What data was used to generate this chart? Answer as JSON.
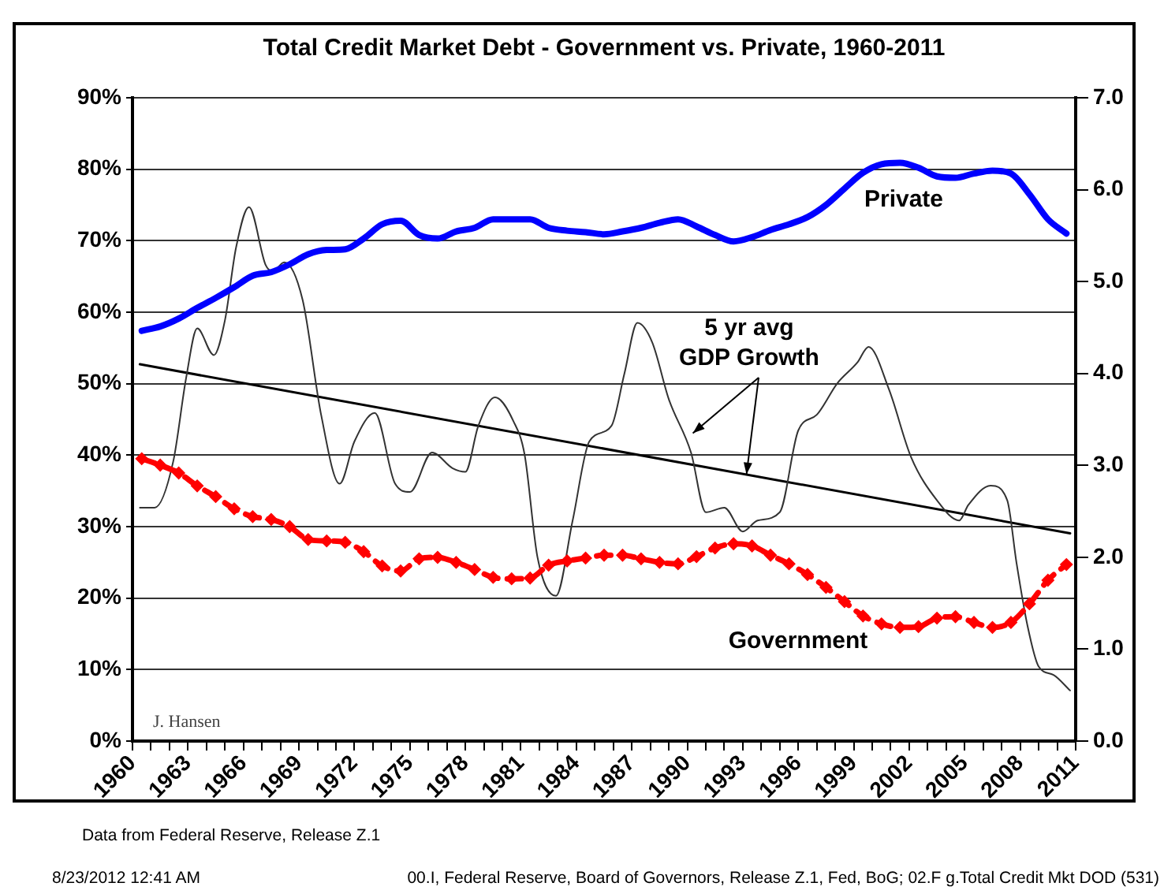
{
  "chart_data": {
    "type": "line",
    "title": "Total Credit Market Debt - Government vs. Private, 1960-2011",
    "x": [
      1960.5,
      1961.5,
      1962.5,
      1963.5,
      1964.5,
      1965.5,
      1966.5,
      1967.5,
      1968.5,
      1969.5,
      1970.5,
      1971.5,
      1972.5,
      1973.5,
      1974.5,
      1975.5,
      1976.5,
      1977.5,
      1978.5,
      1979.5,
      1980.5,
      1981.5,
      1982.5,
      1983.5,
      1984.5,
      1985.5,
      1986.5,
      1987.5,
      1988.5,
      1989.5,
      1990.5,
      1991.5,
      1992.5,
      1993.5,
      1994.5,
      1995.5,
      1996.5,
      1997.5,
      1998.5,
      1999.5,
      2000.5,
      2001.5,
      2002.5,
      2003.5,
      2004.5,
      2005.5,
      2006.5,
      2007.5,
      2008.5,
      2009.5,
      2010.5
    ],
    "series": [
      {
        "color": "#0000ff",
        "values": [
          57.4,
          58,
          59.1,
          60.6,
          62,
          63.5,
          65.1,
          65.6,
          66.7,
          68.1,
          68.7,
          68.8,
          70.3,
          72.3,
          72.8,
          70.8,
          70.3,
          71.3,
          71.8,
          73,
          73,
          73,
          71.8,
          71.4,
          71.2,
          70.9,
          71.3,
          71.8,
          72.5,
          73,
          72,
          70.8,
          69.9,
          70.5,
          71.5,
          72.3,
          73.3,
          75,
          77.3,
          79.5,
          80.7,
          80.9,
          80.2,
          79,
          78.8,
          79.4,
          79.8,
          79.4,
          76.5,
          73,
          71
        ]
      },
      {
        "color": "#ff0000",
        "marker": "diamond",
        "line_style": "dashed",
        "values": [
          39.5,
          38.6,
          37.5,
          35.7,
          34.2,
          32.5,
          31.4,
          31,
          30,
          28.2,
          28,
          27.8,
          26.5,
          24.5,
          23.8,
          25.5,
          25.7,
          25,
          24,
          22.9,
          22.7,
          22.8,
          24.6,
          25.2,
          25.6,
          26,
          26,
          25.5,
          25,
          24.8,
          25.8,
          27,
          27.6,
          27.3,
          26,
          24.8,
          23.3,
          21.5,
          19.5,
          17.5,
          16.4,
          15.9,
          16,
          17.2,
          17.4,
          16.6,
          15.9,
          16.6,
          19.2,
          22.5,
          24.7
        ]
      },
      {
        "color": "#333333",
        "axis": "y2",
        "x": [
          1960.4,
          1961.2,
          1962.2,
          1962.9,
          1963.5,
          1964.4,
          1965,
          1965.6,
          1966.3,
          1967.2,
          1967.6,
          1968.2,
          1969.2,
          1970.2,
          1971.2,
          1972,
          1973.1,
          1974.2,
          1975,
          1976.2,
          1977.3,
          1978,
          1978.7,
          1979.6,
          1980.6,
          1981.2,
          1981.9,
          1982.9,
          1983.8,
          1984.7,
          1985.9,
          1986.6,
          1987.3,
          1988.1,
          1989,
          1990.2,
          1991,
          1992,
          1993,
          1993.8,
          1995,
          1996,
          1997,
          1998.1,
          1999.2,
          1999.8,
          2000.9,
          2002.1,
          2003.5,
          2004.7,
          2005.2,
          2006.4,
          2007.3,
          2007.8,
          2008.4,
          2009,
          2009.8,
          2010.7
        ],
        "values": [
          2.54,
          2.54,
          3.04,
          3.95,
          4.49,
          4.2,
          4.58,
          5.37,
          5.81,
          5.18,
          5.11,
          5.21,
          4.8,
          3.55,
          2.8,
          3.26,
          3.57,
          2.8,
          2.71,
          3.14,
          2.97,
          2.93,
          3.43,
          3.74,
          3.48,
          3.12,
          2,
          1.58,
          2.4,
          3.26,
          3.43,
          4,
          4.55,
          4.34,
          3.72,
          3.14,
          2.49,
          2.54,
          2.28,
          2.4,
          2.49,
          3.38,
          3.55,
          3.89,
          4.12,
          4.29,
          3.83,
          3.09,
          2.62,
          2.4,
          2.57,
          2.78,
          2.62,
          1.94,
          1.25,
          0.81,
          0.72,
          0.55
        ]
      },
      {
        "color": "#000000",
        "axis": "y2",
        "x": [
          1960.4,
          2010.7
        ],
        "values": [
          4.1,
          2.26
        ]
      }
    ],
    "xlim": [
      1960,
      2011
    ],
    "xticks": [
      1960,
      {
        "value": 1961,
        "label": null
      },
      {
        "value": 1962,
        "label": null
      },
      1963,
      {
        "value": 1964,
        "label": null
      },
      {
        "value": 1965,
        "label": null
      },
      1966,
      {
        "value": 1967,
        "label": null
      },
      {
        "value": 1968,
        "label": null
      },
      1969,
      {
        "value": 1970,
        "label": null
      },
      {
        "value": 1971,
        "label": null
      },
      1972,
      {
        "value": 1973,
        "label": null
      },
      {
        "value": 1974,
        "label": null
      },
      1975,
      {
        "value": 1976,
        "label": null
      },
      {
        "value": 1977,
        "label": null
      },
      1978,
      {
        "value": 1979,
        "label": null
      },
      {
        "value": 1980,
        "label": null
      },
      1981,
      {
        "value": 1982,
        "label": null
      },
      {
        "value": 1983,
        "label": null
      },
      1984,
      {
        "value": 1985,
        "label": null
      },
      {
        "value": 1986,
        "label": null
      },
      1987,
      {
        "value": 1988,
        "label": null
      },
      {
        "value": 1989,
        "label": null
      },
      1990,
      {
        "value": 1991,
        "label": null
      },
      {
        "value": 1992,
        "label": null
      },
      1993,
      {
        "value": 1994,
        "label": null
      },
      {
        "value": 1995,
        "label": null
      },
      1996,
      {
        "value": 1997,
        "label": null
      },
      {
        "value": 1998,
        "label": null
      },
      1999,
      {
        "value": 2000,
        "label": null
      },
      {
        "value": 2001,
        "label": null
      },
      2002,
      {
        "value": 2003,
        "label": null
      },
      {
        "value": 2004,
        "label": null
      },
      2005,
      {
        "value": 2006,
        "label": null
      },
      {
        "value": 2007,
        "label": null
      },
      2008,
      {
        "value": 2009,
        "label": null
      },
      {
        "value": 2010,
        "label": null
      },
      2011
    ],
    "ylim": [
      0,
      90
    ],
    "yticks": [
      {
        "value": 0,
        "label": "0%"
      },
      {
        "value": 10,
        "label": "10%"
      },
      {
        "value": 20,
        "label": "20%"
      },
      {
        "value": 30,
        "label": "30%"
      },
      {
        "value": 40,
        "label": "40%"
      },
      {
        "value": 50,
        "label": "50%"
      },
      {
        "value": 60,
        "label": "60%"
      },
      {
        "value": 70,
        "label": "70%"
      },
      {
        "value": 80,
        "label": "80%"
      },
      {
        "value": 90,
        "label": "90%"
      }
    ],
    "y2lim": [
      0,
      7
    ],
    "y2ticks": [
      {
        "value": 0,
        "label": "0.0"
      },
      {
        "value": 1,
        "label": "1.0"
      },
      {
        "value": 2,
        "label": "2.0"
      },
      {
        "value": 3,
        "label": "3.0"
      },
      {
        "value": 4,
        "label": "4.0"
      },
      {
        "value": 5,
        "label": "5.0"
      },
      {
        "value": 6,
        "label": "6.0"
      },
      {
        "value": 7,
        "label": "7.0"
      }
    ],
    "grid": "y",
    "annotations": [
      "Private",
      "Government",
      {
        "text": "5 yr avg GDP Growth",
        "x": 1993.2,
        "y": 37.3
      },
      "J. Hansen",
      "Data from Federal Reserve, Release Z.1",
      "8/23/2012  12:41 AM",
      "00.I, Federal Reserve, Board of Governors, Release Z.1, Fed, BoG; 02.F  g.Total Credit Mkt DOD (531)"
    ]
  }
}
